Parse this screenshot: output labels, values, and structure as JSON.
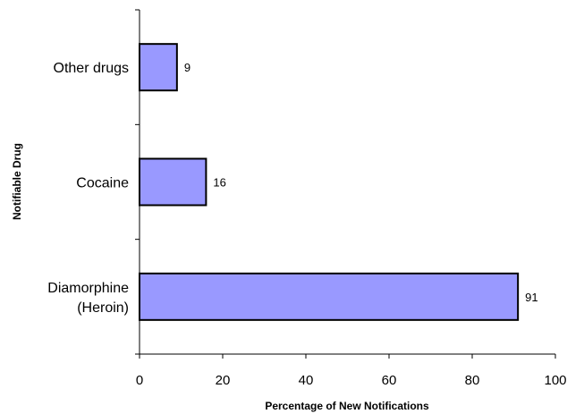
{
  "chart_data": {
    "type": "bar",
    "orientation": "horizontal",
    "categories": [
      "Other drugs",
      "Cocaine",
      "Diamorphine\n(Heroin)"
    ],
    "values": [
      9,
      16,
      91
    ],
    "data_labels": [
      "9",
      "16",
      "91"
    ],
    "xlabel": "Percentage of New Notifications",
    "ylabel": "Notifiable Drug",
    "xlim": [
      0,
      100
    ],
    "xticks": [
      0,
      20,
      40,
      60,
      80,
      100
    ],
    "xtick_labels": [
      "0",
      "20",
      "40",
      "60",
      "80",
      "100"
    ],
    "grid": false,
    "legend": "none",
    "bar_color": "#9999ff",
    "bar_stroke": "#000000"
  }
}
